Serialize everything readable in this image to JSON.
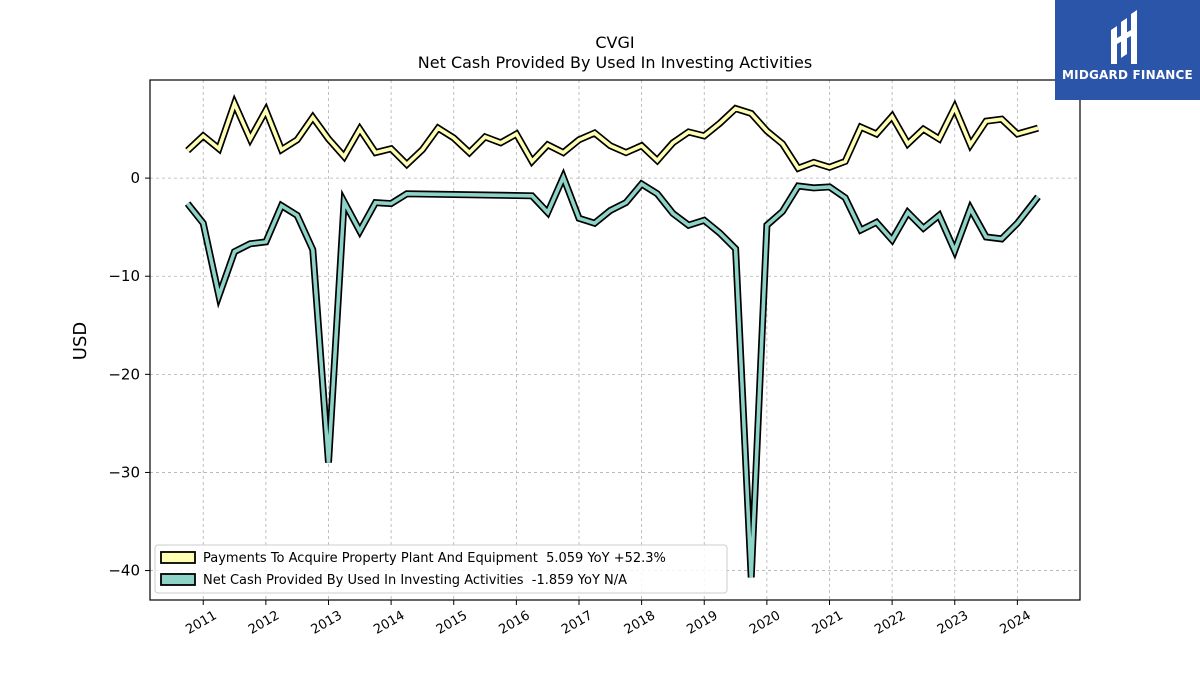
{
  "chart_data": {
    "type": "line",
    "title": "CVGI",
    "subtitle": "Net Cash Provided By Used In Investing Activities",
    "ylabel": "USD",
    "xlabel": "",
    "xlim": [
      2010.15,
      2025.0
    ],
    "ylim": [
      -43,
      10
    ],
    "grid": true,
    "legend_position": "lower-left",
    "x_ticks": [
      "2011",
      "2012",
      "2013",
      "2014",
      "2015",
      "2016",
      "2017",
      "2018",
      "2019",
      "2020",
      "2021",
      "2022",
      "2023",
      "2024"
    ],
    "y_ticks": [
      0,
      -10,
      -20,
      -30,
      -40
    ],
    "y_tick_labels": [
      "0",
      "−10",
      "−20",
      "−30",
      "−40"
    ],
    "series": [
      {
        "name": "Payments To Acquire Property Plant And Equipment  5.059 YoY +52.3%",
        "color": "#ffffb3",
        "x": [
          2010.75,
          2011.0,
          2011.25,
          2011.5,
          2011.75,
          2012.0,
          2012.25,
          2012.5,
          2012.75,
          2013.0,
          2013.25,
          2013.5,
          2013.75,
          2014.0,
          2014.25,
          2014.5,
          2014.75,
          2015.0,
          2015.25,
          2015.5,
          2015.75,
          2016.0,
          2016.25,
          2016.5,
          2016.75,
          2017.0,
          2017.25,
          2017.5,
          2017.75,
          2018.0,
          2018.25,
          2018.5,
          2018.75,
          2019.0,
          2019.25,
          2019.5,
          2019.75,
          2020.0,
          2020.25,
          2020.5,
          2020.75,
          2021.0,
          2021.25,
          2021.5,
          2021.75,
          2022.0,
          2022.25,
          2022.5,
          2022.75,
          2023.0,
          2023.25,
          2023.5,
          2023.75,
          2024.0,
          2024.33
        ],
        "values": [
          2.8,
          4.3,
          3.0,
          7.6,
          4.0,
          6.9,
          2.9,
          3.9,
          6.2,
          4.0,
          2.2,
          5.0,
          2.6,
          3.0,
          1.4,
          2.9,
          5.1,
          4.1,
          2.6,
          4.2,
          3.6,
          4.5,
          1.7,
          3.4,
          2.6,
          3.9,
          4.6,
          3.3,
          2.6,
          3.3,
          1.8,
          3.6,
          4.7,
          4.3,
          5.6,
          7.1,
          6.6,
          4.8,
          3.5,
          1.0,
          1.6,
          1.1,
          1.7,
          5.2,
          4.5,
          6.3,
          3.5,
          5.0,
          4.0,
          7.2,
          3.4,
          5.8,
          6.0,
          4.5,
          5.1
        ]
      },
      {
        "name": "Net Cash Provided By Used In Investing Activities  -1.859 YoY N/A",
        "color": "#8dd3c7",
        "x": [
          2010.75,
          2011.0,
          2011.25,
          2011.5,
          2011.75,
          2012.0,
          2012.25,
          2012.5,
          2012.75,
          2013.0,
          2013.25,
          2013.5,
          2013.75,
          2014.0,
          2014.25,
          2016.25,
          2016.5,
          2016.75,
          2017.0,
          2017.25,
          2017.5,
          2017.75,
          2018.0,
          2018.25,
          2018.5,
          2018.75,
          2019.0,
          2019.25,
          2019.5,
          2019.75,
          2020.0,
          2020.25,
          2020.5,
          2020.75,
          2021.0,
          2021.25,
          2021.5,
          2021.75,
          2022.0,
          2022.25,
          2022.5,
          2022.75,
          2023.0,
          2023.25,
          2023.5,
          2023.75,
          2024.0,
          2024.33
        ],
        "values": [
          -2.6,
          -4.6,
          -12.0,
          -7.5,
          -6.7,
          -6.5,
          -2.8,
          -3.8,
          -7.3,
          -29.0,
          -2.4,
          -5.4,
          -2.5,
          -2.6,
          -1.6,
          -1.8,
          -3.5,
          0.1,
          -4.1,
          -4.6,
          -3.3,
          -2.5,
          -0.6,
          -1.6,
          -3.6,
          -4.8,
          -4.3,
          -5.6,
          -7.2,
          -40.7,
          -4.8,
          -3.4,
          -0.8,
          -1.0,
          -0.9,
          -2.0,
          -5.3,
          -4.5,
          -6.3,
          -3.5,
          -5.1,
          -3.8,
          -7.4,
          -3.1,
          -6.0,
          -6.2,
          -4.6,
          -1.9
        ]
      }
    ]
  },
  "logo": {
    "text": "MIDGARD FINANCE"
  }
}
